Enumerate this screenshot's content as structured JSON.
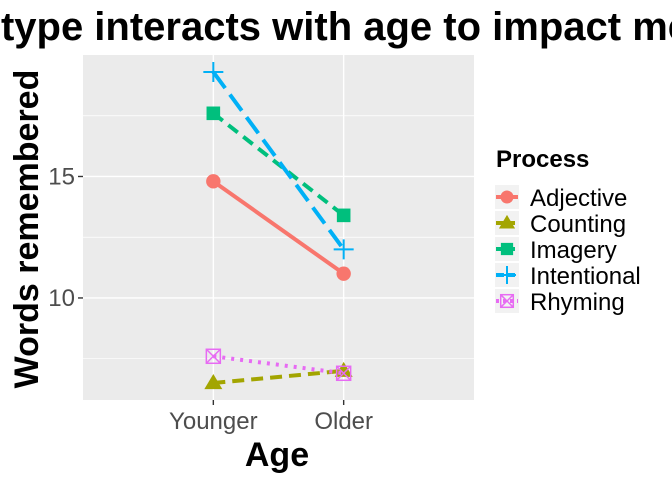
{
  "chart_data": {
    "type": "line",
    "title": "Process type interacts with age to impact memory",
    "xlabel": "Age",
    "ylabel": "Words remembered",
    "categories": [
      "Younger",
      "Older"
    ],
    "ylim": [
      5.8,
      20.0
    ],
    "yticks": [
      10,
      15
    ],
    "grid": true,
    "legend": {
      "title": "Process",
      "placement": "right"
    },
    "series": [
      {
        "name": "Adjective",
        "values": [
          14.8,
          11.0
        ],
        "color": "#F8766D",
        "marker": "circle",
        "linestyle": "solid"
      },
      {
        "name": "Counting",
        "values": [
          6.5,
          7.0
        ],
        "color": "#A3A500",
        "marker": "triangle",
        "linestyle": "dashed"
      },
      {
        "name": "Imagery",
        "values": [
          17.6,
          13.4
        ],
        "color": "#00BF7D",
        "marker": "square",
        "linestyle": "dashed"
      },
      {
        "name": "Intentional",
        "values": [
          19.3,
          12.0
        ],
        "color": "#00B0F6",
        "marker": "plus",
        "linestyle": "longdash"
      },
      {
        "name": "Rhyming",
        "values": [
          7.6,
          6.9
        ],
        "color": "#E76BF3",
        "marker": "boxcross",
        "linestyle": "dotted"
      }
    ]
  }
}
